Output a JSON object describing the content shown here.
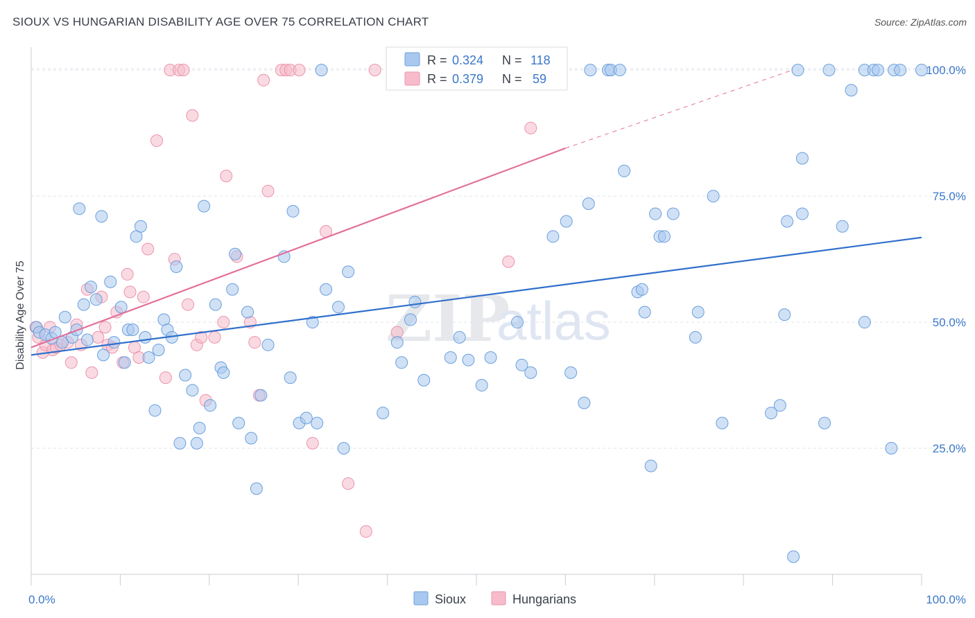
{
  "header": {
    "title": "SIOUX VS HUNGARIAN DISABILITY AGE OVER 75 CORRELATION CHART",
    "source": "Source: ZipAtlas.com"
  },
  "watermark": {
    "zip": "ZIP",
    "atlas": "atlas"
  },
  "legend": {
    "row1": {
      "r_label": "R =",
      "r_value": "0.324",
      "n_label": "N =",
      "n_value": "118"
    },
    "row2": {
      "r_label": "R =",
      "r_value": "0.379",
      "n_label": "N =",
      "n_value": "59"
    }
  },
  "bottom_legend": {
    "sioux": "Sioux",
    "hungarians": "Hungarians"
  },
  "colors": {
    "sioux_fill": "#a9c8ef",
    "sioux_stroke": "#6a9fdc",
    "sioux_line": "#2f6fcc",
    "hung_fill": "#f6bccb",
    "hung_stroke": "#ec93ab",
    "hung_line": "#e3709a",
    "tick_text": "#3a78c9",
    "grid": "#dfe3ea"
  },
  "chart_data": {
    "type": "scatter",
    "title": "SIOUX VS HUNGARIAN DISABILITY AGE OVER 75 CORRELATION CHART",
    "xlabel": "",
    "ylabel": "Disability Age Over 75",
    "xlim": [
      0,
      100
    ],
    "ylim": [
      0,
      104
    ],
    "x_tick_labels": [
      "0.0%",
      "100.0%"
    ],
    "y_ticks": [
      25,
      50,
      75,
      100
    ],
    "y_tick_labels": [
      "25.0%",
      "50.0%",
      "75.0%",
      "100.0%"
    ],
    "grid": "horizontal dashed",
    "legend_position": "top-center",
    "series": [
      {
        "name": "Sioux",
        "R": 0.324,
        "N": 118,
        "trend": {
          "x": [
            0,
            100
          ],
          "y": [
            43.5,
            66.8
          ]
        },
        "points": [
          [
            0.6,
            49
          ],
          [
            0.9,
            48
          ],
          [
            1.6,
            47.5
          ],
          [
            2.3,
            46.8
          ],
          [
            2.7,
            48
          ],
          [
            3.8,
            51
          ],
          [
            3.5,
            46
          ],
          [
            4.6,
            47
          ],
          [
            5.1,
            48.5
          ],
          [
            5.4,
            72.5
          ],
          [
            5.9,
            53.5
          ],
          [
            6.3,
            46.5
          ],
          [
            6.7,
            57
          ],
          [
            7.3,
            54.5
          ],
          [
            7.9,
            71
          ],
          [
            8.1,
            43.5
          ],
          [
            8.9,
            58
          ],
          [
            9.3,
            46
          ],
          [
            10.1,
            53
          ],
          [
            10.5,
            42
          ],
          [
            10.9,
            48.5
          ],
          [
            11.4,
            48.5
          ],
          [
            11.8,
            67
          ],
          [
            12.3,
            69
          ],
          [
            12.8,
            47
          ],
          [
            13.2,
            43
          ],
          [
            13.9,
            32.5
          ],
          [
            14.3,
            44.5
          ],
          [
            14.9,
            50.5
          ],
          [
            15.3,
            48.5
          ],
          [
            15.8,
            47
          ],
          [
            16.3,
            61
          ],
          [
            16.7,
            26
          ],
          [
            17.3,
            39.5
          ],
          [
            18.1,
            36.5
          ],
          [
            18.6,
            26
          ],
          [
            18.9,
            29
          ],
          [
            19.4,
            73
          ],
          [
            20.1,
            33.5
          ],
          [
            20.7,
            53.5
          ],
          [
            21.3,
            41
          ],
          [
            21.6,
            40
          ],
          [
            22.6,
            56.5
          ],
          [
            22.9,
            63.5
          ],
          [
            23.3,
            30
          ],
          [
            24.3,
            52
          ],
          [
            24.7,
            27
          ],
          [
            25.3,
            17
          ],
          [
            25.8,
            35.5
          ],
          [
            26.6,
            45.5
          ],
          [
            28.4,
            63
          ],
          [
            29.1,
            39
          ],
          [
            29.4,
            72
          ],
          [
            30.1,
            30
          ],
          [
            30.9,
            31
          ],
          [
            31.6,
            50
          ],
          [
            32.1,
            30
          ],
          [
            32.6,
            100
          ],
          [
            33.1,
            56.5
          ],
          [
            34.5,
            53
          ],
          [
            35.1,
            25
          ],
          [
            35.6,
            60
          ],
          [
            39.5,
            32
          ],
          [
            41.1,
            46
          ],
          [
            41.6,
            42
          ],
          [
            42.6,
            50.5
          ],
          [
            43.1,
            54
          ],
          [
            44.1,
            38.5
          ],
          [
            47.1,
            43
          ],
          [
            48.1,
            47
          ],
          [
            49.1,
            42.5
          ],
          [
            50.6,
            37.5
          ],
          [
            51.6,
            43
          ],
          [
            55.1,
            41.5
          ],
          [
            54.6,
            50
          ],
          [
            56.1,
            40
          ],
          [
            58.6,
            67
          ],
          [
            60.1,
            70
          ],
          [
            60.6,
            40
          ],
          [
            62.1,
            34
          ],
          [
            62.6,
            73.5
          ],
          [
            62.8,
            100
          ],
          [
            64.8,
            100
          ],
          [
            65.1,
            100
          ],
          [
            66.1,
            100
          ],
          [
            66.6,
            80
          ],
          [
            68.1,
            56
          ],
          [
            68.6,
            56.5
          ],
          [
            68.9,
            52
          ],
          [
            69.6,
            21.5
          ],
          [
            70.1,
            71.5
          ],
          [
            70.6,
            67
          ],
          [
            71.1,
            67
          ],
          [
            72.1,
            71.5
          ],
          [
            74.6,
            47
          ],
          [
            74.9,
            52
          ],
          [
            76.6,
            75
          ],
          [
            77.6,
            30
          ],
          [
            83.1,
            32
          ],
          [
            84.1,
            33.5
          ],
          [
            84.6,
            51.5
          ],
          [
            84.9,
            70
          ],
          [
            86.6,
            82.5
          ],
          [
            85.6,
            3.5
          ],
          [
            86.6,
            71.5
          ],
          [
            89.1,
            30
          ],
          [
            89.6,
            100
          ],
          [
            91.1,
            69
          ],
          [
            92.1,
            96
          ],
          [
            93.6,
            50
          ],
          [
            93.6,
            100
          ],
          [
            94.6,
            100
          ],
          [
            95.1,
            100
          ],
          [
            96.6,
            25
          ],
          [
            96.9,
            100
          ],
          [
            97.6,
            100
          ],
          [
            100,
            100
          ],
          [
            86.1,
            100
          ]
        ]
      },
      {
        "name": "Hungarians",
        "R": 0.379,
        "N": 59,
        "trend": {
          "x": [
            0,
            60
          ],
          "y": [
            45,
            84.5
          ]
        },
        "trend_dashed": {
          "x": [
            60,
            85.5
          ],
          "y": [
            84.5,
            100
          ]
        },
        "points": [
          [
            0.5,
            49
          ],
          [
            0.8,
            47
          ],
          [
            1.3,
            44
          ],
          [
            1.6,
            45.5
          ],
          [
            2.1,
            49
          ],
          [
            2.4,
            44.5
          ],
          [
            2.8,
            45
          ],
          [
            3.3,
            45.5
          ],
          [
            4.1,
            46
          ],
          [
            4.5,
            42
          ],
          [
            5.1,
            49.5
          ],
          [
            5.6,
            45.5
          ],
          [
            6.3,
            56.5
          ],
          [
            6.8,
            40
          ],
          [
            7.5,
            47
          ],
          [
            7.9,
            55
          ],
          [
            8.3,
            49
          ],
          [
            8.6,
            45.5
          ],
          [
            9.1,
            45
          ],
          [
            9.6,
            52
          ],
          [
            10.3,
            42
          ],
          [
            10.8,
            59.5
          ],
          [
            11.1,
            56
          ],
          [
            11.6,
            45
          ],
          [
            12.1,
            43
          ],
          [
            12.6,
            55
          ],
          [
            13.1,
            64.5
          ],
          [
            14.1,
            86
          ],
          [
            15.1,
            39
          ],
          [
            15.6,
            100
          ],
          [
            16.1,
            62.5
          ],
          [
            16.6,
            100
          ],
          [
            17.1,
            100
          ],
          [
            17.6,
            53.5
          ],
          [
            18.1,
            91
          ],
          [
            18.6,
            45.5
          ],
          [
            19.1,
            47
          ],
          [
            19.6,
            34.5
          ],
          [
            20.6,
            47
          ],
          [
            21.6,
            50
          ],
          [
            21.9,
            79
          ],
          [
            23.1,
            63
          ],
          [
            24.6,
            50
          ],
          [
            25.1,
            46
          ],
          [
            25.6,
            35.5
          ],
          [
            26.1,
            98
          ],
          [
            26.6,
            76
          ],
          [
            28.1,
            100
          ],
          [
            28.6,
            100
          ],
          [
            29.1,
            100
          ],
          [
            30.1,
            100
          ],
          [
            31.6,
            26
          ],
          [
            33.1,
            68
          ],
          [
            35.6,
            18
          ],
          [
            37.6,
            8.5
          ],
          [
            38.6,
            100
          ],
          [
            41.1,
            48
          ],
          [
            53.6,
            62
          ],
          [
            56.1,
            88.5
          ]
        ]
      }
    ]
  }
}
